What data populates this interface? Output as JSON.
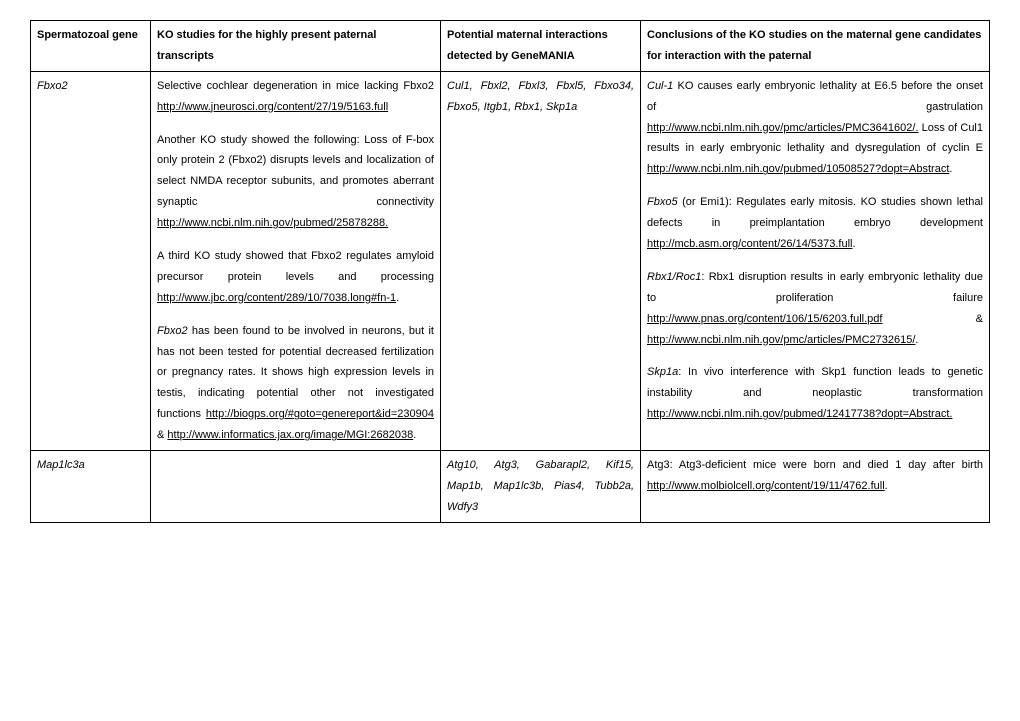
{
  "header": {
    "col1": "Spermatozoal gene",
    "col2": "KO studies for the highly present paternal transcripts",
    "col3": "Potential maternal interactions detected by GeneMANIA",
    "col4": "Conclusions of the KO studies on the maternal gene candidates for interaction with the paternal"
  },
  "row1": {
    "gene": "Fbxo2",
    "ko_p1_a": "Selective cochlear degeneration in mice lacking Fbxo2 ",
    "ko_p1_link": "http://www.jneurosci.org/content/27/19/5163.full",
    "ko_p2_a": "Another KO study showed the following:  Loss of F-box only protein 2 (Fbxo2) disrupts levels and localization of select NMDA receptor subunits, and promotes aberrant synaptic connectivity ",
    "ko_p2_link": "http://www.ncbi.nlm.nih.gov/pubmed/25878288.",
    "ko_p3_a": "A third KO study showed that Fbxo2 regulates amyloid precursor protein levels and processing ",
    "ko_p3_link": "http://www.jbc.org/content/289/10/7038.long#fn-1",
    "ko_p3_b": ".",
    "ko_p4_geneital": "Fbxo2",
    "ko_p4_a": " has been found to be involved in neurons, but it has not been tested for potential decreased fertilization or pregnancy rates. It shows high expression levels in testis, indicating potential other not investigated functions ",
    "ko_p4_link1": "http://biogps.org/#goto=genereport&id=230904",
    "ko_p4_amp": " & ",
    "ko_p4_link2": "http://www.informatics.jax.org/image/MGI:2682038",
    "ko_p4_b": ".",
    "maternal": "Cul1, Fbxl2, Fbxl3, Fbxl5, Fbxo34, Fbxo5, Itgb1, Rbx1, Skp1a",
    "concl_p1_gene": "Cul-1",
    "concl_p1_a": " KO causes early embryonic lethality at E6.5 before the onset of gastrulation ",
    "concl_p1_link": "http://www.ncbi.nlm.nih.gov/pmc/articles/PMC3641602/.",
    "concl_p1_b": " Loss of Cul1 results in early embryonic lethality and dysregulation of cyclin E ",
    "concl_p1_link2": "http://www.ncbi.nlm.nih.gov/pubmed/10508527?dopt=Abstract",
    "concl_p1_c": ".",
    "concl_p2_gene": "Fbxo5",
    "concl_p2_a": " (or Emi1):  Regulates early mitosis. KO studies shown lethal defects in preimplantation embryo development ",
    "concl_p2_link": "http://mcb.asm.org/content/26/14/5373.full",
    "concl_p2_b": ".",
    "concl_p3_gene": "Rbx1/Roc1",
    "concl_p3_a": ":  Rbx1 disruption results in early embryonic lethality due to proliferation failure ",
    "concl_p3_link1": "http://www.pnas.org/content/106/15/6203.full.pdf",
    "concl_p3_amp": " & ",
    "concl_p3_link2": "http://www.ncbi.nlm.nih.gov/pmc/articles/PMC2732615/",
    "concl_p3_b": ".",
    "concl_p4_gene": "Skp1a",
    "concl_p4_a": ": In vivo interference with Skp1 function leads to genetic instability and neoplastic transformation ",
    "concl_p4_link": "http://www.ncbi.nlm.nih.gov/pubmed/12417738?dopt=Abstract.",
    "concl_p4_b": ""
  },
  "row2": {
    "gene": "Map1lc3a",
    "ko": "",
    "maternal": "Atg10, Atg3, Gabarapl2, Kif15, Map1b, Map1lc3b, Pias4, Tubb2a, Wdfy3",
    "concl_a": "Atg3: Atg3-deficient mice were born and died 1 day after birth ",
    "concl_link": "http://www.molbiolcell.org/content/19/11/4762.full",
    "concl_b": "."
  }
}
